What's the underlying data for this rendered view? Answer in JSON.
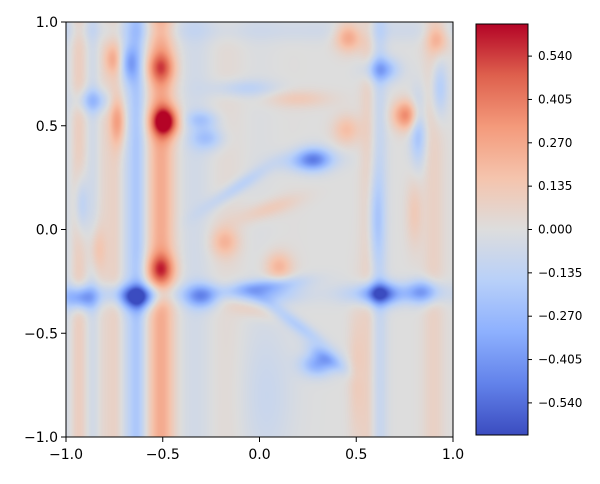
{
  "chart_data": {
    "type": "heatmap",
    "title": "",
    "xlabel": "",
    "ylabel": "",
    "xlim": [
      -1.0,
      1.0
    ],
    "ylim": [
      -1.0,
      1.0
    ],
    "x_ticks": [
      "−1.0",
      "−0.5",
      "0.0",
      "0.5",
      "1.0"
    ],
    "y_ticks": [
      "1.0",
      "0.5",
      "0.0",
      "−0.5",
      "−1.0"
    ],
    "colormap": "coolwarm",
    "colorbar": {
      "range": [
        -0.64,
        0.64
      ],
      "ticks": [
        "0.540",
        "0.405",
        "0.270",
        "0.135",
        "0.000",
        "−0.135",
        "−0.270",
        "−0.405",
        "−0.540"
      ],
      "tick_values": [
        0.54,
        0.405,
        0.27,
        0.135,
        0.0,
        -0.135,
        -0.27,
        -0.405,
        -0.54
      ]
    },
    "grid": false,
    "features": [
      {
        "kind": "peak",
        "x": -0.49,
        "y": 0.52,
        "value": 0.6
      },
      {
        "kind": "peak",
        "x": -0.51,
        "y": 0.78,
        "value": 0.3
      },
      {
        "kind": "peak",
        "x": -0.51,
        "y": -0.19,
        "value": 0.35
      },
      {
        "kind": "peak",
        "x": 0.76,
        "y": 0.55,
        "value": 0.38
      },
      {
        "kind": "peak",
        "x": 0.46,
        "y": 0.93,
        "value": 0.3
      },
      {
        "kind": "peak",
        "x": 0.1,
        "y": -0.18,
        "value": 0.22
      },
      {
        "kind": "peak",
        "x": -0.18,
        "y": -0.06,
        "value": 0.2
      },
      {
        "kind": "peak",
        "x": 0.45,
        "y": 0.48,
        "value": 0.18
      },
      {
        "kind": "trough",
        "x": -0.92,
        "y": -0.33,
        "value": -0.42
      },
      {
        "kind": "trough",
        "x": -0.63,
        "y": -0.33,
        "value": -0.45
      },
      {
        "kind": "trough",
        "x": -0.3,
        "y": -0.32,
        "value": -0.4
      },
      {
        "kind": "trough",
        "x": 0.62,
        "y": -0.31,
        "value": -0.42
      },
      {
        "kind": "trough",
        "x": 0.85,
        "y": -0.3,
        "value": -0.35
      },
      {
        "kind": "trough",
        "x": 0.28,
        "y": 0.34,
        "value": -0.33
      },
      {
        "kind": "trough",
        "x": 0.3,
        "y": -0.65,
        "value": -0.33
      },
      {
        "kind": "trough",
        "x": -0.27,
        "y": 0.44,
        "value": -0.22
      },
      {
        "kind": "trough",
        "x": 0.63,
        "y": 0.77,
        "value": -0.32
      },
      {
        "kind": "trough",
        "x": -0.86,
        "y": 0.62,
        "value": -0.25
      }
    ]
  }
}
